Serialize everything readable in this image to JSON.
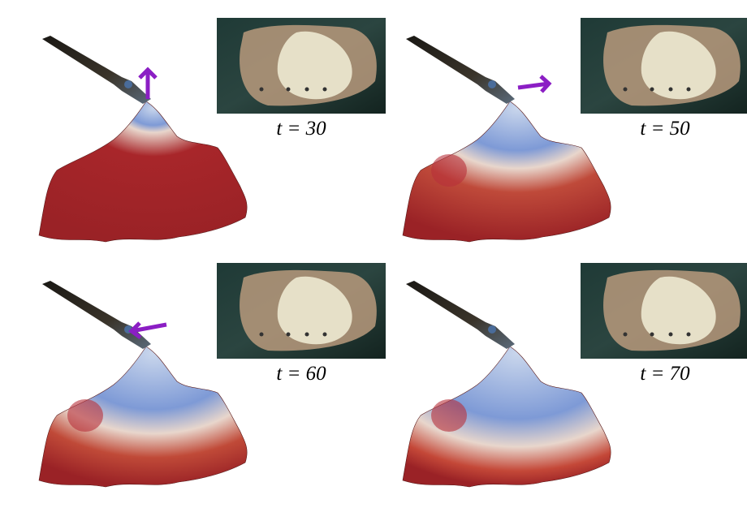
{
  "panels": [
    {
      "caption": "t = 30"
    },
    {
      "caption": "t = 50"
    },
    {
      "caption": "t = 60"
    },
    {
      "caption": "t = 70"
    }
  ]
}
